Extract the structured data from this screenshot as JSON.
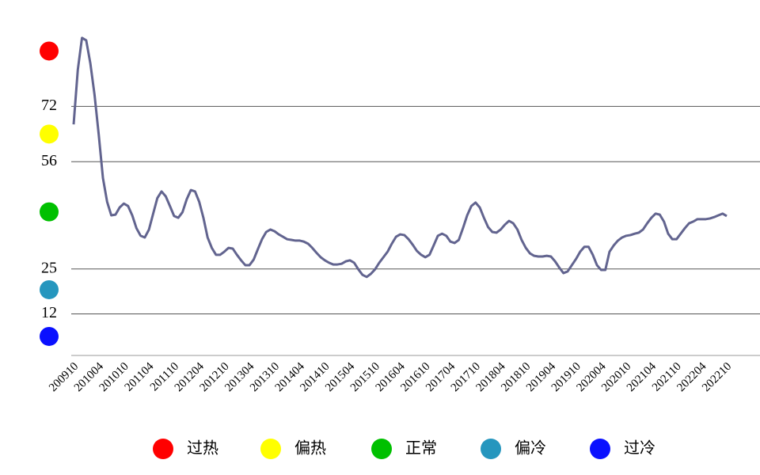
{
  "chart_data": {
    "type": "line",
    "categories": [
      "200910",
      null,
      null,
      null,
      null,
      null,
      "201004",
      null,
      null,
      null,
      null,
      null,
      "201010",
      null,
      null,
      null,
      null,
      null,
      "201104",
      null,
      null,
      null,
      null,
      null,
      "201110",
      null,
      null,
      null,
      null,
      null,
      "201204",
      null,
      null,
      null,
      null,
      null,
      "201210",
      null,
      null,
      null,
      null,
      null,
      "201304",
      null,
      null,
      null,
      null,
      null,
      "201310",
      null,
      null,
      null,
      null,
      null,
      "201404",
      null,
      null,
      null,
      null,
      null,
      "201410",
      null,
      null,
      null,
      null,
      null,
      "201504",
      null,
      null,
      null,
      null,
      null,
      "201510",
      null,
      null,
      null,
      null,
      null,
      "201604",
      null,
      null,
      null,
      null,
      null,
      "201610",
      null,
      null,
      null,
      null,
      null,
      "201704",
      null,
      null,
      null,
      null,
      null,
      "201710",
      null,
      null,
      null,
      null,
      null,
      "201804",
      null,
      null,
      null,
      null,
      null,
      "201810",
      null,
      null,
      null,
      null,
      null,
      "201904",
      null,
      null,
      null,
      null,
      null,
      "201910",
      null,
      null,
      null,
      null,
      null,
      "202004",
      null,
      null,
      null,
      null,
      null,
      "202010",
      null,
      null,
      null,
      null,
      null,
      "202104",
      null,
      null,
      null,
      null,
      null,
      "202110",
      null,
      null,
      null,
      null,
      null,
      "202204",
      null,
      null,
      null,
      null,
      null,
      "202210"
    ],
    "values": [
      66.8,
      82.6,
      91.8,
      91.1,
      84.4,
      75.3,
      63.8,
      51.3,
      44.4,
      40.5,
      40.7,
      42.8,
      43.9,
      43.2,
      40.5,
      36.8,
      34.6,
      34.1,
      36.4,
      41.0,
      45.5,
      47.4,
      46.0,
      43.2,
      40.3,
      39.8,
      41.4,
      45.1,
      47.8,
      47.4,
      44.4,
      39.8,
      34.1,
      31.1,
      29.1,
      29.1,
      30.0,
      31.1,
      30.9,
      29.1,
      27.5,
      26.1,
      26.1,
      27.7,
      30.7,
      33.6,
      35.7,
      36.4,
      35.9,
      35.0,
      34.3,
      33.6,
      33.4,
      33.2,
      33.2,
      32.9,
      32.3,
      31.1,
      29.7,
      28.4,
      27.5,
      26.8,
      26.3,
      26.3,
      26.5,
      27.2,
      27.5,
      26.8,
      24.9,
      23.3,
      22.7,
      23.6,
      24.9,
      26.8,
      28.4,
      30.0,
      32.3,
      34.3,
      35.0,
      34.8,
      33.6,
      32.0,
      30.2,
      29.1,
      28.4,
      29.1,
      31.8,
      34.6,
      35.2,
      34.6,
      32.9,
      32.5,
      33.4,
      36.8,
      40.5,
      43.2,
      44.2,
      42.8,
      39.8,
      37.1,
      35.7,
      35.5,
      36.4,
      37.8,
      38.9,
      38.2,
      36.4,
      33.4,
      31.1,
      29.5,
      28.8,
      28.6,
      28.6,
      28.8,
      28.6,
      27.2,
      25.4,
      23.8,
      24.3,
      26.1,
      27.9,
      30.0,
      31.4,
      31.4,
      29.1,
      26.1,
      24.7,
      24.7,
      30.0,
      31.8,
      33.2,
      34.1,
      34.6,
      34.8,
      35.2,
      35.5,
      36.4,
      38.2,
      39.8,
      41.0,
      40.7,
      38.7,
      35.2,
      33.6,
      33.6,
      35.2,
      36.8,
      38.2,
      38.7,
      39.4,
      39.4,
      39.4,
      39.6,
      40.0,
      40.5,
      41.0,
      40.3
    ],
    "color": "#62648f",
    "ylim": [
      0,
      100
    ],
    "yticks": [
      12,
      25,
      56,
      72
    ],
    "grid": true,
    "levels": [
      {
        "name": "过热",
        "color": "#ff0000",
        "value": 88
      },
      {
        "name": "偏热",
        "color": "#ffff00",
        "value": 64
      },
      {
        "name": "正常",
        "color": "#00c000",
        "value": 41.5
      },
      {
        "name": "偏冷",
        "color": "#2596be",
        "value": 19
      },
      {
        "name": "过冷",
        "color": "#0a10ff",
        "value": 5.5
      }
    ]
  }
}
